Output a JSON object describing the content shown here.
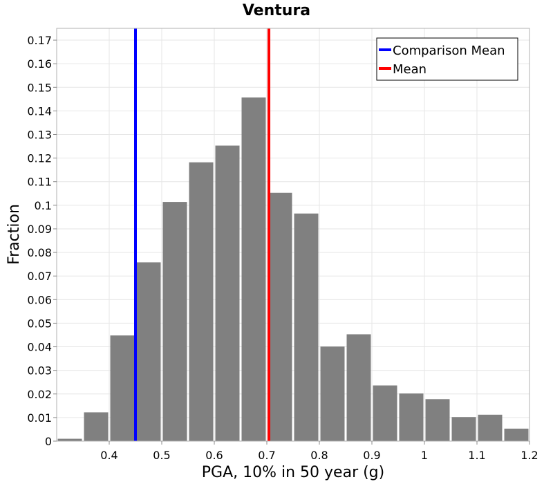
{
  "chart_data": {
    "type": "bar",
    "title": "Ventura",
    "xlabel": "PGA, 10% in 50 year (g)",
    "ylabel": "Fraction",
    "xlim": [
      0.3,
      1.2
    ],
    "ylim": [
      0,
      0.175
    ],
    "grid": true,
    "legend_position": "top-right",
    "bar_color": "#808080",
    "bin_width": 0.05,
    "x_ticks": [
      0.4,
      0.5,
      0.6,
      0.7,
      0.8,
      0.9,
      1.0,
      1.1,
      1.2
    ],
    "x_tick_labels": [
      "0.4",
      "0.5",
      "0.6",
      "0.7",
      "0.8",
      "0.9",
      "1",
      "1.1",
      "1.2"
    ],
    "y_ticks": [
      0,
      0.01,
      0.02,
      0.03,
      0.04,
      0.05,
      0.06,
      0.07,
      0.08,
      0.09,
      0.1,
      0.11,
      0.12,
      0.13,
      0.14,
      0.15,
      0.16,
      0.17
    ],
    "y_tick_labels": [
      "0",
      "0.01",
      "0.02",
      "0.03",
      "0.04",
      "0.05",
      "0.06",
      "0.07",
      "0.08",
      "0.09",
      "0.1",
      "0.11",
      "0.12",
      "0.13",
      "0.14",
      "0.15",
      "0.16",
      "0.17"
    ],
    "bins": [
      {
        "x": 0.325,
        "value": 0.001
      },
      {
        "x": 0.375,
        "value": 0.0122
      },
      {
        "x": 0.425,
        "value": 0.0448
      },
      {
        "x": 0.475,
        "value": 0.0758
      },
      {
        "x": 0.525,
        "value": 0.1014
      },
      {
        "x": 0.575,
        "value": 0.1182
      },
      {
        "x": 0.625,
        "value": 0.1253
      },
      {
        "x": 0.675,
        "value": 0.1457
      },
      {
        "x": 0.725,
        "value": 0.1053
      },
      {
        "x": 0.775,
        "value": 0.0965
      },
      {
        "x": 0.825,
        "value": 0.0401
      },
      {
        "x": 0.875,
        "value": 0.0453
      },
      {
        "x": 0.925,
        "value": 0.0236
      },
      {
        "x": 0.975,
        "value": 0.0202
      },
      {
        "x": 1.025,
        "value": 0.0178
      },
      {
        "x": 1.075,
        "value": 0.0102
      },
      {
        "x": 1.125,
        "value": 0.0112
      },
      {
        "x": 1.175,
        "value": 0.0053
      }
    ],
    "reference_lines": [
      {
        "name": "Comparison Mean",
        "x": 0.45,
        "color": "#0000ff"
      },
      {
        "name": "Mean",
        "x": 0.704,
        "color": "#ff0000"
      }
    ]
  }
}
